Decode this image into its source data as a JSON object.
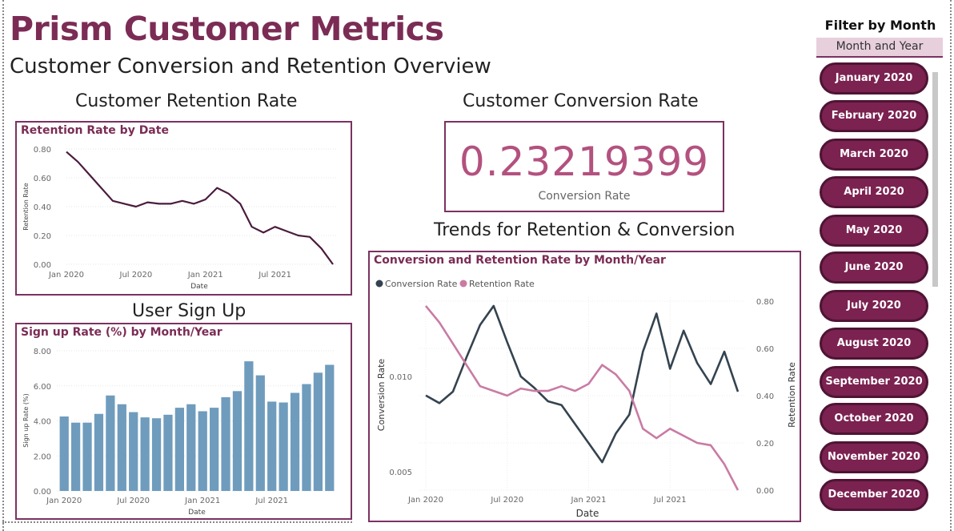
{
  "header": {
    "title": "Prism Customer Metrics",
    "subtitle": "Customer Conversion and Retention Overview"
  },
  "sections": {
    "retention": "Customer Retention Rate",
    "conversion": "Customer Conversion Rate",
    "signup": "User Sign Up",
    "trends": "Trends for Retention & Conversion"
  },
  "kpi": {
    "value": "0.23219399",
    "label": "Conversion Rate"
  },
  "slicer": {
    "title": "Filter by Month",
    "field": "Month and Year",
    "items": [
      "January 2020",
      "February 2020",
      "March 2020",
      "April 2020",
      "May 2020",
      "June 2020",
      "July 2020",
      "August 2020",
      "September 2020",
      "October 2020",
      "November 2020",
      "December 2020"
    ]
  },
  "colors": {
    "accent": "#7b2c55",
    "retention_line": "#4a1c3e",
    "bar": "#6f9cbd",
    "conversion_line": "#34434f",
    "retention_pink": "#c97ba4",
    "kpi": "#b3517f"
  },
  "chart_data": [
    {
      "type": "line",
      "title": "Retention Rate by Date",
      "xlabel": "Date",
      "ylabel": "Retention Rate",
      "x_ticks": [
        "Jan 2020",
        "Jul 2020",
        "Jan 2021",
        "Jul 2021"
      ],
      "y_ticks": [
        "0.00",
        "0.20",
        "0.40",
        "0.60",
        "0.80"
      ],
      "ylim": [
        0,
        0.8
      ],
      "x": [
        "2020-01",
        "2020-02",
        "2020-03",
        "2020-04",
        "2020-05",
        "2020-06",
        "2020-07",
        "2020-08",
        "2020-09",
        "2020-10",
        "2020-11",
        "2020-12",
        "2021-01",
        "2021-02",
        "2021-03",
        "2021-04",
        "2021-05",
        "2021-06",
        "2021-07",
        "2021-08",
        "2021-09",
        "2021-10",
        "2021-11",
        "2021-12"
      ],
      "series": [
        {
          "values": [
            0.78,
            0.71,
            0.62,
            0.53,
            0.44,
            0.42,
            0.4,
            0.43,
            0.42,
            0.42,
            0.44,
            0.42,
            0.45,
            0.53,
            0.49,
            0.42,
            0.26,
            0.22,
            0.26,
            0.23,
            0.2,
            0.19,
            0.11,
            0.0
          ]
        }
      ],
      "grid": true
    },
    {
      "type": "bar",
      "title": "Sign up Rate (%) by Month/Year",
      "xlabel": "Date",
      "ylabel": "Sign up Rate (%)",
      "x_ticks": [
        "Jan 2020",
        "Jul 2020",
        "Jan 2021",
        "Jul 2021"
      ],
      "y_ticks": [
        "0.00",
        "2.00",
        "4.00",
        "6.00",
        "8.00"
      ],
      "ylim": [
        0,
        8
      ],
      "categories": [
        "2020-01",
        "2020-02",
        "2020-03",
        "2020-04",
        "2020-05",
        "2020-06",
        "2020-07",
        "2020-08",
        "2020-09",
        "2020-10",
        "2020-11",
        "2020-12",
        "2021-01",
        "2021-02",
        "2021-03",
        "2021-04",
        "2021-05",
        "2021-06",
        "2021-07",
        "2021-08",
        "2021-09",
        "2021-10",
        "2021-11",
        "2021-12"
      ],
      "values": [
        4.25,
        3.9,
        3.9,
        4.4,
        5.45,
        4.95,
        4.5,
        4.2,
        4.15,
        4.35,
        4.75,
        4.95,
        4.55,
        4.75,
        5.35,
        5.7,
        7.4,
        6.6,
        5.1,
        5.05,
        5.6,
        6.1,
        6.75,
        7.2
      ],
      "grid": true
    },
    {
      "type": "line",
      "title": "Conversion and Retention Rate by Month/Year",
      "xlabel": "Date",
      "ylabel": "Conversion Rate",
      "y2label": "Retention Rate",
      "legend_position": "top-left",
      "x_ticks": [
        "Jan 2020",
        "Jul 2020",
        "Jan 2021",
        "Jul 2021"
      ],
      "y_ticks": [
        "0.005",
        "0.010"
      ],
      "y2_ticks": [
        "0.00",
        "0.20",
        "0.40",
        "0.60",
        "0.80"
      ],
      "y2lim": [
        0,
        0.8
      ],
      "x": [
        "2020-01",
        "2020-02",
        "2020-03",
        "2020-04",
        "2020-05",
        "2020-06",
        "2020-07",
        "2020-08",
        "2020-09",
        "2020-10",
        "2020-11",
        "2020-12",
        "2021-01",
        "2021-02",
        "2021-03",
        "2021-04",
        "2021-05",
        "2021-06",
        "2021-07",
        "2021-08",
        "2021-09",
        "2021-10",
        "2021-11",
        "2021-12"
      ],
      "series": [
        {
          "name": "Conversion Rate",
          "axis": "left",
          "values": [
            0.009,
            0.0086,
            0.0092,
            0.011,
            0.0127,
            0.0137,
            0.0118,
            0.01,
            0.0094,
            0.0087,
            0.0085,
            0.0075,
            0.0065,
            0.0055,
            0.007,
            0.008,
            0.0113,
            0.0133,
            0.0104,
            0.0124,
            0.0107,
            0.0096,
            0.0113,
            0.0092
          ]
        },
        {
          "name": "Retention Rate",
          "axis": "right",
          "values": [
            0.78,
            0.71,
            0.62,
            0.53,
            0.44,
            0.42,
            0.4,
            0.43,
            0.42,
            0.42,
            0.44,
            0.42,
            0.45,
            0.53,
            0.49,
            0.42,
            0.26,
            0.22,
            0.26,
            0.23,
            0.2,
            0.19,
            0.11,
            0.0
          ]
        }
      ],
      "grid": true
    }
  ]
}
